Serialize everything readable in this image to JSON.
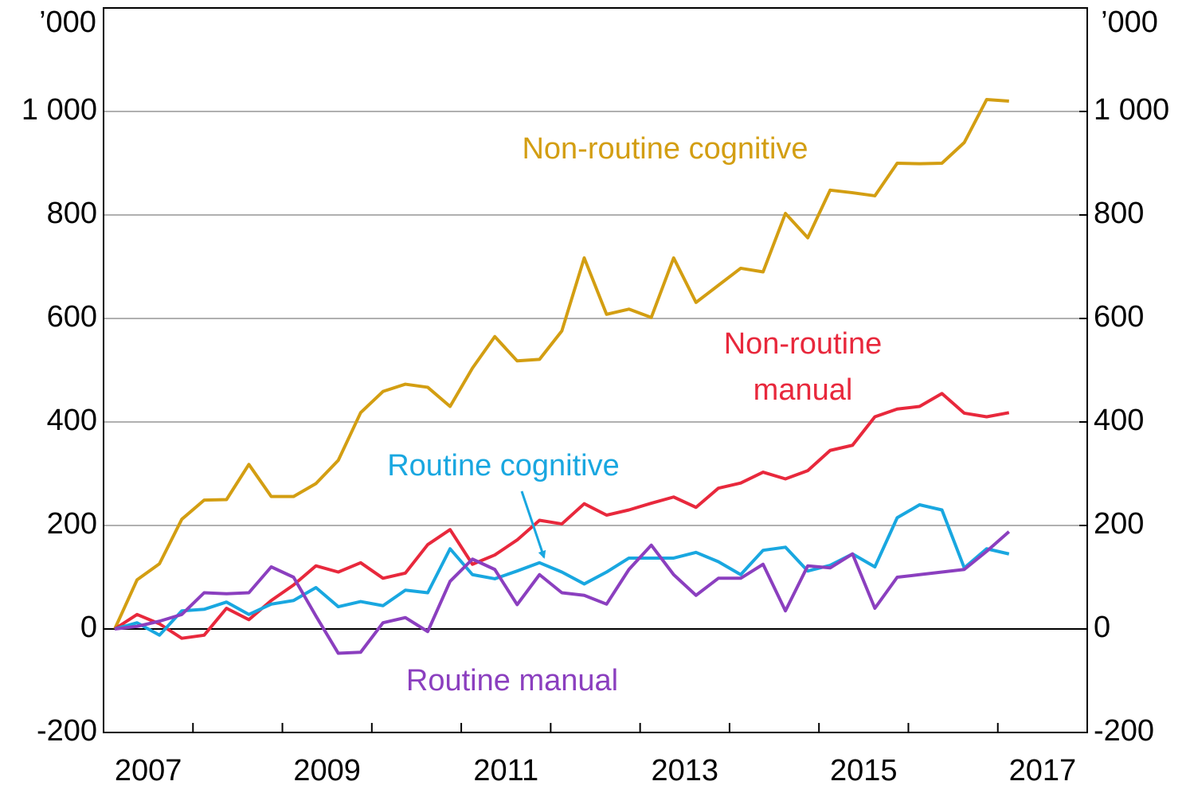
{
  "chart_data": {
    "type": "line",
    "y_unit": "’000",
    "y2_unit": "’000",
    "x": [
      2007.125,
      2007.375,
      2007.625,
      2007.875,
      2008.125,
      2008.375,
      2008.625,
      2008.875,
      2009.125,
      2009.375,
      2009.625,
      2009.875,
      2010.125,
      2010.375,
      2010.625,
      2010.875,
      2011.125,
      2011.375,
      2011.625,
      2011.875,
      2012.125,
      2012.375,
      2012.625,
      2012.875,
      2013.125,
      2013.375,
      2013.625,
      2013.875,
      2014.125,
      2014.375,
      2014.625,
      2014.875,
      2015.125,
      2015.375,
      2015.625,
      2015.875,
      2016.125,
      2016.375,
      2016.625,
      2016.875,
      2017.125
    ],
    "series": [
      {
        "name": "Non-routine cognitive",
        "color": "#d39e12",
        "values": [
          0,
          95,
          126,
          212,
          249,
          250,
          318,
          256,
          256,
          281,
          326,
          418,
          459,
          473,
          467,
          430,
          504,
          565,
          518,
          521,
          576,
          717,
          608,
          618,
          602,
          717,
          631,
          664,
          697,
          690,
          803,
          756,
          848,
          843,
          837,
          900,
          899,
          900,
          940,
          1023,
          1020
        ]
      },
      {
        "name": "Non-routine manual",
        "color": "#e8283c",
        "values": [
          0,
          28,
          10,
          -18,
          -12,
          40,
          18,
          55,
          85,
          122,
          110,
          128,
          98,
          108,
          163,
          192,
          125,
          143,
          172,
          210,
          203,
          242,
          220,
          230,
          243,
          255,
          235,
          272,
          282,
          303,
          290,
          306,
          345,
          355,
          410,
          425,
          430,
          455,
          417,
          410,
          418
        ]
      },
      {
        "name": "Routine cognitive",
        "color": "#19a7e0",
        "values": [
          0,
          12,
          -12,
          35,
          38,
          52,
          28,
          48,
          55,
          80,
          43,
          53,
          45,
          75,
          70,
          155,
          105,
          97,
          112,
          128,
          110,
          87,
          110,
          137,
          137,
          137,
          148,
          130,
          105,
          152,
          158,
          112,
          123,
          145,
          120,
          215,
          240,
          230,
          118,
          155,
          145
        ]
      },
      {
        "name": "Routine manual",
        "color": "#8b3fbf",
        "values": [
          0,
          5,
          15,
          28,
          70,
          68,
          70,
          120,
          100,
          25,
          -47,
          -45,
          12,
          22,
          -5,
          92,
          135,
          115,
          47,
          105,
          70,
          65,
          48,
          115,
          162,
          105,
          65,
          98,
          98,
          125,
          35,
          122,
          118,
          145,
          40,
          100,
          105,
          110,
          115,
          150,
          188
        ]
      }
    ],
    "xlim": [
      2007,
      2018
    ],
    "xticks": [
      2007,
      2008,
      2009,
      2010,
      2011,
      2012,
      2013,
      2014,
      2015,
      2016,
      2017,
      2018
    ],
    "xtick_labels": [
      {
        "value": 2007.5,
        "label": "2007"
      },
      {
        "value": 2009.5,
        "label": "2009"
      },
      {
        "value": 2011.5,
        "label": "2011"
      },
      {
        "value": 2013.5,
        "label": "2013"
      },
      {
        "value": 2015.5,
        "label": "2015"
      },
      {
        "value": 2017.5,
        "label": "2017"
      }
    ],
    "ylim": [
      -200,
      1200
    ],
    "yticks": [
      -200,
      0,
      200,
      400,
      600,
      800,
      {
        "value": 1000,
        "label": "1 000"
      }
    ],
    "y2lim": [
      -200,
      1200
    ],
    "y2ticks": [
      -200,
      0,
      200,
      400,
      600,
      800,
      {
        "value": 1000,
        "label": "1 000"
      }
    ],
    "grid": true
  }
}
